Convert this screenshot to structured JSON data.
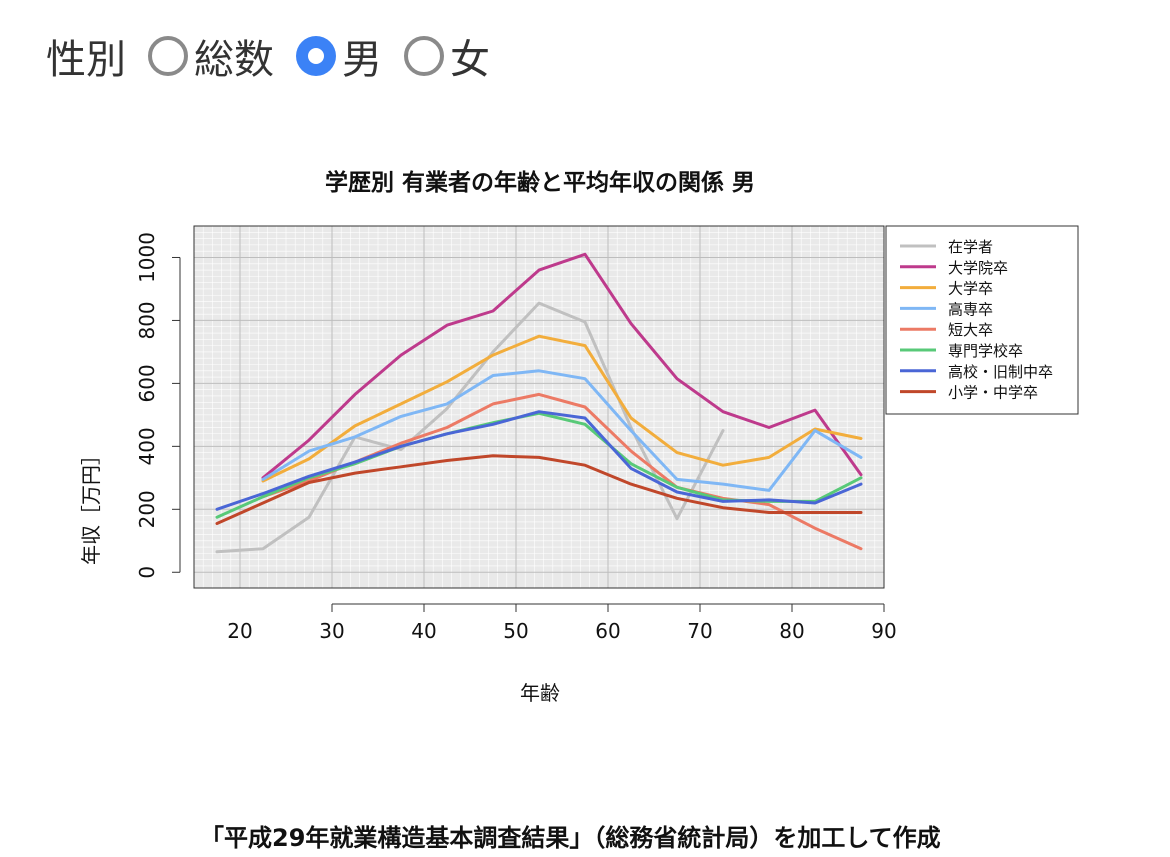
{
  "gender_selector": {
    "label": "性別",
    "options": [
      {
        "label": "総数",
        "checked": false
      },
      {
        "label": "男",
        "checked": true
      },
      {
        "label": "女",
        "checked": false
      }
    ]
  },
  "chart_data": {
    "type": "line",
    "title": "学歴別 有業者の年齢と平均年収の関係 男",
    "xlabel": "年齢",
    "ylabel": "年収［万円］",
    "xlim": [
      15,
      90
    ],
    "ylim": [
      -50,
      1100
    ],
    "xticks": [
      20,
      30,
      40,
      50,
      60,
      70,
      80,
      90
    ],
    "yticks": [
      0,
      200,
      400,
      600,
      800,
      1000
    ],
    "grid": true,
    "legend_position": "top-right-outside",
    "series": [
      {
        "name": "在学者",
        "color": "#c0c0c0",
        "x": [
          17.5,
          22.5,
          27.5,
          32.5,
          37.5,
          42.5,
          47.5,
          52.5,
          57.5,
          62.5,
          67.5,
          72.5
        ],
        "y": [
          65,
          75,
          175,
          430,
          390,
          520,
          700,
          855,
          795,
          460,
          170,
          450
        ]
      },
      {
        "name": "大学院卒",
        "color": "#be3a8c",
        "x": [
          22.5,
          27.5,
          32.5,
          37.5,
          42.5,
          47.5,
          52.5,
          57.5,
          62.5,
          67.5,
          72.5,
          77.5,
          82.5,
          87.5
        ],
        "y": [
          300,
          420,
          565,
          690,
          785,
          830,
          960,
          1010,
          790,
          615,
          510,
          460,
          515,
          310
        ]
      },
      {
        "name": "大学卒",
        "color": "#f2ad3c",
        "x": [
          22.5,
          27.5,
          32.5,
          37.5,
          42.5,
          47.5,
          52.5,
          57.5,
          62.5,
          67.5,
          72.5,
          77.5,
          82.5,
          87.5
        ],
        "y": [
          290,
          360,
          465,
          535,
          605,
          690,
          750,
          720,
          490,
          380,
          340,
          365,
          455,
          425
        ]
      },
      {
        "name": "高専卒",
        "color": "#7fb7f5",
        "x": [
          22.5,
          27.5,
          32.5,
          37.5,
          42.5,
          47.5,
          52.5,
          57.5,
          62.5,
          67.5,
          72.5,
          77.5,
          82.5,
          87.5
        ],
        "y": [
          295,
          385,
          430,
          495,
          535,
          625,
          640,
          615,
          450,
          295,
          280,
          260,
          450,
          365
        ]
      },
      {
        "name": "短大卒",
        "color": "#ec7a65",
        "x": [
          22.5,
          27.5,
          32.5,
          37.5,
          42.5,
          47.5,
          52.5,
          57.5,
          62.5,
          67.5,
          72.5,
          77.5,
          82.5,
          87.5
        ],
        "y": [
          240,
          290,
          350,
          410,
          460,
          535,
          565,
          525,
          385,
          270,
          235,
          215,
          140,
          75
        ]
      },
      {
        "name": "専門学校卒",
        "color": "#58c978",
        "x": [
          17.5,
          22.5,
          27.5,
          32.5,
          37.5,
          42.5,
          47.5,
          52.5,
          57.5,
          62.5,
          67.5,
          72.5,
          77.5,
          82.5,
          87.5
        ],
        "y": [
          175,
          240,
          300,
          345,
          400,
          440,
          475,
          505,
          470,
          345,
          270,
          230,
          225,
          225,
          300
        ]
      },
      {
        "name": "高校・旧制中卒",
        "color": "#4a66d6",
        "x": [
          17.5,
          22.5,
          27.5,
          32.5,
          37.5,
          42.5,
          47.5,
          52.5,
          57.5,
          62.5,
          67.5,
          72.5,
          77.5,
          82.5,
          87.5
        ],
        "y": [
          200,
          250,
          305,
          350,
          400,
          440,
          470,
          510,
          490,
          330,
          255,
          225,
          230,
          220,
          280
        ]
      },
      {
        "name": "小学・中学卒",
        "color": "#c0472a",
        "x": [
          17.5,
          22.5,
          27.5,
          32.5,
          37.5,
          42.5,
          47.5,
          52.5,
          57.5,
          62.5,
          67.5,
          72.5,
          77.5,
          82.5,
          87.5
        ],
        "y": [
          155,
          220,
          285,
          315,
          335,
          355,
          370,
          365,
          340,
          280,
          235,
          205,
          190,
          190,
          190
        ]
      }
    ]
  },
  "caption": "「平成29年就業構造基本調査結果」（総務省統計局）を加工して作成"
}
